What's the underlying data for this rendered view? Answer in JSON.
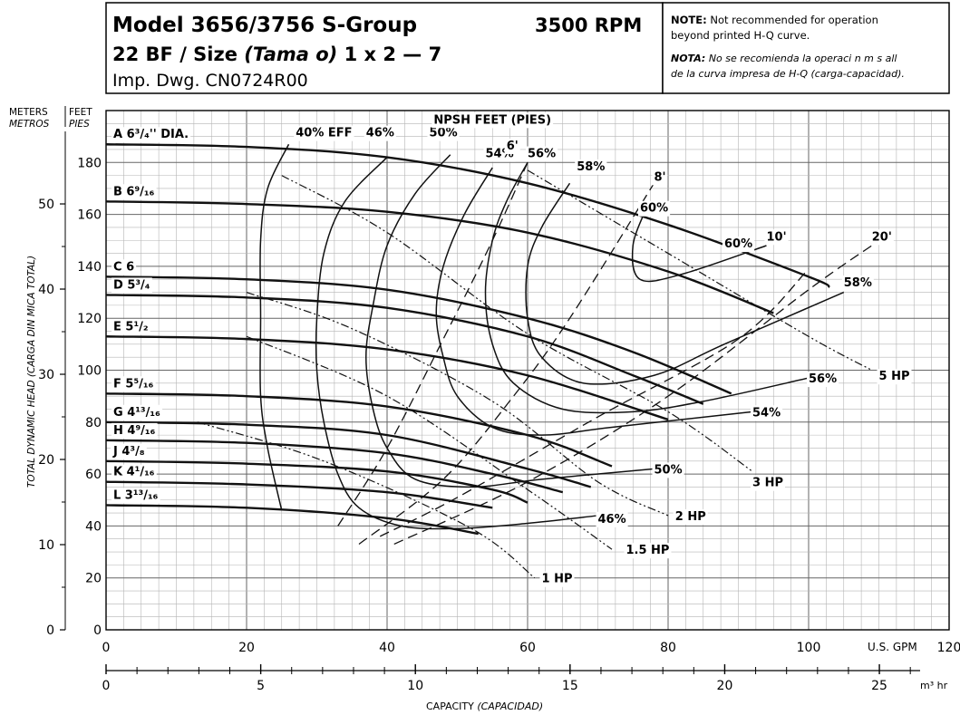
{
  "header": {
    "line1": "Model 3656/3756 S-Group",
    "rpm": "3500 RPM",
    "line2_a": "22 BF / Size ",
    "line2_b": "(Tama o)",
    "line2_c": "  1 x 2 — 7",
    "line3": "Imp. Dwg. CN0724R00"
  },
  "note": {
    "note_label": "NOTE:",
    "note_l1": " Not recommended for operation",
    "note_l2": "beyond printed H-Q curve.",
    "nota_label": "NOTA:",
    "nota_l1": " No se recomienda la operaci n m s all",
    "nota_l2": "de la curva impresa de H-Q (carga-capacidad)."
  },
  "axis_labels": {
    "meters": "METERS",
    "metros": "METROS",
    "feet": "FEET",
    "pies": "PIES",
    "y_title": "TOTAL DYNAMIC HEAD (CARGA DIN MICA TOTAL)",
    "x_title_a": "CAPACITY ",
    "x_title_b": "(CAPACIDAD)",
    "gpm_unit": "U.S. GPM",
    "m3_unit": "m³ hr"
  },
  "chart_data": {
    "type": "line",
    "title": "Model 3656/3756 S-Group 22 BF / Size 1 x 2 — 7",
    "xlabel": "CAPACITY (CAPACIDAD)",
    "ylabel": "TOTAL DYNAMIC HEAD (CARGA DIN MICA TOTAL)",
    "xlim": [
      0,
      120
    ],
    "ylim": [
      0,
      200
    ],
    "x_ticks_gpm": [
      0,
      20,
      40,
      60,
      80,
      100,
      120
    ],
    "feet_ticks": [
      0,
      20,
      40,
      60,
      80,
      100,
      120,
      140,
      160,
      180
    ],
    "meter_ticks": [
      0,
      10,
      20,
      30,
      40,
      50
    ],
    "m3hr_ticks": [
      0,
      5,
      10,
      15,
      20,
      25
    ],
    "grid": true,
    "head_curves": [
      {
        "label": "A 6³/₄'' DIA.",
        "points": [
          [
            0,
            187
          ],
          [
            20,
            186
          ],
          [
            40,
            182
          ],
          [
            60,
            172
          ],
          [
            80,
            156
          ],
          [
            100,
            136
          ],
          [
            103,
            132
          ]
        ]
      },
      {
        "label": "B 6⁹/₁₆",
        "points": [
          [
            0,
            165
          ],
          [
            20,
            164
          ],
          [
            40,
            161
          ],
          [
            60,
            153
          ],
          [
            80,
            138
          ],
          [
            95,
            122
          ]
        ]
      },
      {
        "label": "C 6",
        "points": [
          [
            0,
            136
          ],
          [
            20,
            135
          ],
          [
            40,
            131
          ],
          [
            60,
            120
          ],
          [
            75,
            107
          ],
          [
            89,
            91
          ]
        ]
      },
      {
        "label": "D 5³/₄",
        "points": [
          [
            0,
            129
          ],
          [
            20,
            128
          ],
          [
            40,
            124
          ],
          [
            60,
            113
          ],
          [
            75,
            98
          ],
          [
            85,
            87
          ]
        ]
      },
      {
        "label": "E 5¹/₂",
        "points": [
          [
            0,
            113
          ],
          [
            20,
            112
          ],
          [
            40,
            108
          ],
          [
            60,
            98
          ],
          [
            80,
            81
          ]
        ]
      },
      {
        "label": "F 5⁵/₁₆",
        "points": [
          [
            0,
            91
          ],
          [
            20,
            90
          ],
          [
            40,
            86
          ],
          [
            60,
            75
          ],
          [
            72,
            63
          ]
        ]
      },
      {
        "label": "G 4¹³/₁₆",
        "points": [
          [
            0,
            80
          ],
          [
            20,
            79
          ],
          [
            40,
            75
          ],
          [
            60,
            62
          ],
          [
            69,
            55
          ]
        ]
      },
      {
        "label": "H 4⁹/₁₆",
        "points": [
          [
            0,
            73
          ],
          [
            20,
            72
          ],
          [
            40,
            68
          ],
          [
            55,
            60
          ],
          [
            65,
            53
          ]
        ]
      },
      {
        "label": "J 4³/₈",
        "points": [
          [
            0,
            65
          ],
          [
            20,
            64
          ],
          [
            40,
            61
          ],
          [
            55,
            54
          ],
          [
            60,
            49
          ]
        ]
      },
      {
        "label": "K 4¹/₁₆",
        "points": [
          [
            0,
            57
          ],
          [
            20,
            56
          ],
          [
            40,
            53
          ],
          [
            55,
            47
          ]
        ]
      },
      {
        "label": "L 3¹³/₁₆",
        "points": [
          [
            0,
            48
          ],
          [
            20,
            47
          ],
          [
            40,
            43
          ],
          [
            53,
            37
          ]
        ]
      }
    ],
    "efficiency_curves": [
      {
        "label": "40% EFF",
        "points": [
          [
            26,
            187
          ],
          [
            23,
            170
          ],
          [
            22,
            150
          ],
          [
            22,
            120
          ],
          [
            22,
            90
          ],
          [
            23,
            70
          ],
          [
            25,
            46
          ]
        ]
      },
      {
        "label": "46%",
        "points": [
          [
            40,
            182
          ],
          [
            34,
            165
          ],
          [
            31,
            145
          ],
          [
            30,
            120
          ],
          [
            30,
            100
          ],
          [
            31,
            80
          ],
          [
            33,
            60
          ],
          [
            36,
            47
          ],
          [
            42,
            40
          ],
          [
            50,
            39
          ],
          [
            60,
            41
          ],
          [
            70,
            44
          ]
        ]
      },
      {
        "label": "50%",
        "points": [
          [
            49,
            183
          ],
          [
            44,
            168
          ],
          [
            40,
            148
          ],
          [
            38,
            125
          ],
          [
            37,
            105
          ],
          [
            38,
            85
          ],
          [
            40,
            70
          ],
          [
            44,
            58
          ],
          [
            52,
            55
          ],
          [
            62,
            58
          ],
          [
            78,
            62
          ]
        ]
      },
      {
        "label": "54%",
        "points": [
          [
            55,
            178
          ],
          [
            51,
            160
          ],
          [
            48,
            140
          ],
          [
            47,
            122
          ],
          [
            48,
            105
          ],
          [
            50,
            90
          ],
          [
            55,
            78
          ],
          [
            62,
            75
          ],
          [
            72,
            78
          ],
          [
            92,
            84
          ]
        ]
      },
      {
        "label": "56%",
        "points": [
          [
            60,
            180
          ],
          [
            57,
            165
          ],
          [
            55,
            150
          ],
          [
            54,
            130
          ],
          [
            55,
            110
          ],
          [
            58,
            95
          ],
          [
            65,
            85
          ],
          [
            75,
            84
          ],
          [
            85,
            88
          ],
          [
            100,
            97
          ]
        ]
      },
      {
        "label": "58%",
        "points": [
          [
            66,
            172
          ],
          [
            62,
            155
          ],
          [
            60,
            140
          ],
          [
            60,
            120
          ],
          [
            62,
            105
          ],
          [
            68,
            95
          ],
          [
            78,
            98
          ],
          [
            88,
            110
          ],
          [
            105,
            130
          ]
        ]
      },
      {
        "label": "60%",
        "points": [
          [
            77,
            163
          ],
          [
            75,
            148
          ],
          [
            76,
            135
          ],
          [
            82,
            137
          ],
          [
            94,
            148
          ]
        ]
      }
    ],
    "npsh_curves": [
      {
        "label": "6'",
        "points": [
          [
            33,
            40
          ],
          [
            40,
            70
          ],
          [
            48,
            112
          ],
          [
            55,
            150
          ],
          [
            60,
            180
          ]
        ]
      },
      {
        "label": "8'",
        "points": [
          [
            36,
            33
          ],
          [
            48,
            58
          ],
          [
            58,
            90
          ],
          [
            66,
            120
          ],
          [
            78,
            172
          ]
        ]
      },
      {
        "label": "10'",
        "points": [
          [
            39,
            36
          ],
          [
            50,
            51
          ],
          [
            70,
            82
          ],
          [
            90,
            112
          ],
          [
            100,
            139
          ]
        ]
      },
      {
        "label": "20'",
        "points": [
          [
            41,
            33
          ],
          [
            60,
            57
          ],
          [
            80,
            90
          ],
          [
            100,
            131
          ],
          [
            109,
            148
          ]
        ]
      }
    ],
    "npsh_title": "NPSH FEET (PIES)",
    "horsepower_curves": [
      {
        "label": "1 HP",
        "points": [
          [
            13,
            80
          ],
          [
            31,
            65
          ],
          [
            52,
            39
          ],
          [
            61,
            20
          ]
        ]
      },
      {
        "label": "1.5 HP",
        "points": [
          [
            20,
            113
          ],
          [
            40,
            90
          ],
          [
            60,
            54
          ],
          [
            72,
            31
          ]
        ]
      },
      {
        "label": "2 HP",
        "points": [
          [
            20,
            130
          ],
          [
            35,
            116
          ],
          [
            55,
            88
          ],
          [
            70,
            57
          ],
          [
            80,
            44
          ]
        ]
      },
      {
        "label": "3 HP",
        "points": [
          [
            25,
            175
          ],
          [
            40,
            153
          ],
          [
            60,
            114
          ],
          [
            80,
            84
          ],
          [
            92,
            61
          ]
        ]
      },
      {
        "label": "5 HP",
        "points": [
          [
            60,
            177
          ],
          [
            80,
            145
          ],
          [
            100,
            113
          ],
          [
            109,
            100
          ]
        ]
      }
    ]
  }
}
